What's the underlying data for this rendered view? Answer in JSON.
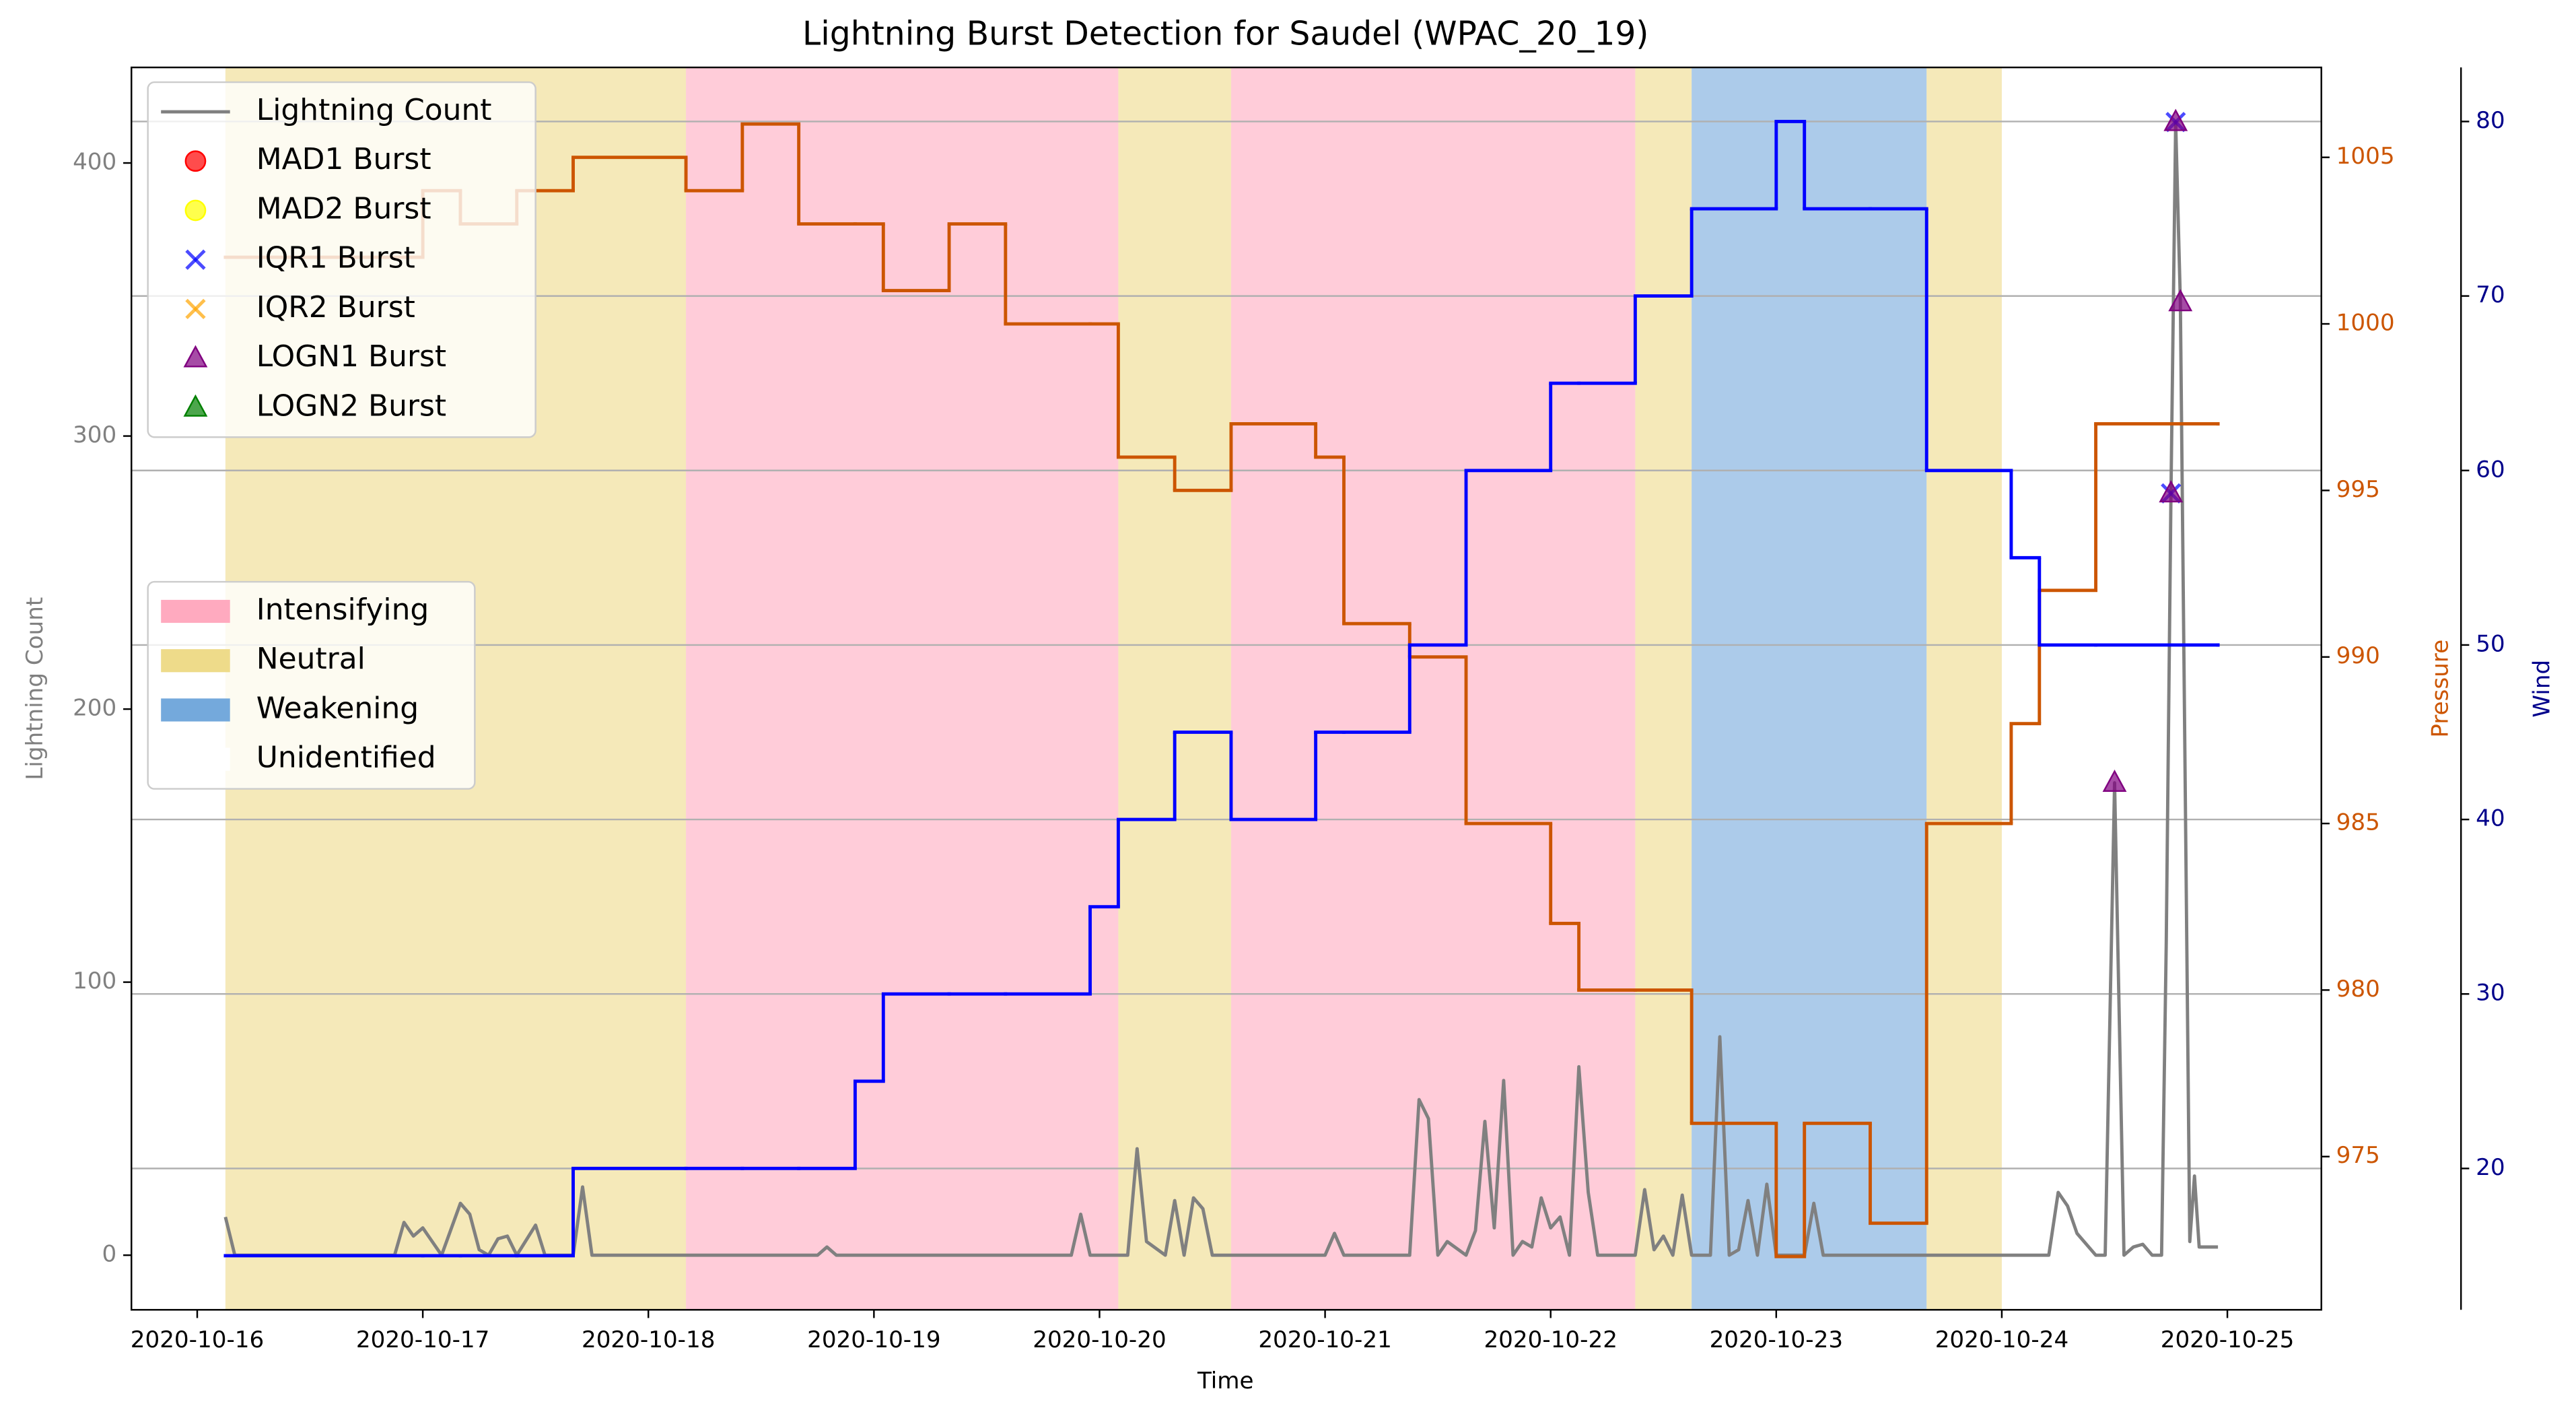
{
  "chart_data": {
    "type": "line",
    "title": "Lightning Burst Detection for Saudel (WPAC_20_19)",
    "xlabel": "Time",
    "ylabel": "Lightning Count",
    "y2label": "Pressure",
    "y3label": "Wind",
    "xlim": [
      "2020-10-15 17:00",
      "2020-10-25 10:00"
    ],
    "xticks": [
      "2020-10-16",
      "2020-10-17",
      "2020-10-18",
      "2020-10-19",
      "2020-10-20",
      "2020-10-21",
      "2020-10-22",
      "2020-10-23",
      "2020-10-24",
      "2020-10-25"
    ],
    "ylim": [
      -20,
      435
    ],
    "yticks": [
      0,
      100,
      200,
      300,
      400
    ],
    "y2lim": [
      970.4,
      1007.7
    ],
    "y2ticks": [
      975,
      980,
      985,
      990,
      995,
      1000,
      1005
    ],
    "y3lim": [
      11.9,
      83.1
    ],
    "y3ticks": [
      20,
      30,
      40,
      50,
      60,
      70,
      80
    ],
    "grid": "y3",
    "legend": "upper left",
    "phase_legend": "center left",
    "phases": [
      {
        "name": "Intensifying",
        "color": "#ffaabf"
      },
      {
        "name": "Neutral",
        "color": "#eedb8a"
      },
      {
        "name": "Weakening",
        "color": "#74a9dc"
      },
      {
        "name": "Unidentified",
        "color": "#ffffff"
      }
    ],
    "phase_spans": [
      {
        "phase": "Neutral",
        "start": "2020-10-16 03:00",
        "end": "2020-10-18 04:00"
      },
      {
        "phase": "Intensifying",
        "start": "2020-10-18 04:00",
        "end": "2020-10-20 02:00"
      },
      {
        "phase": "Neutral",
        "start": "2020-10-20 02:00",
        "end": "2020-10-20 14:00"
      },
      {
        "phase": "Intensifying",
        "start": "2020-10-20 14:00",
        "end": "2020-10-22 09:00"
      },
      {
        "phase": "Neutral",
        "start": "2020-10-22 09:00",
        "end": "2020-10-22 15:00"
      },
      {
        "phase": "Weakening",
        "start": "2020-10-22 15:00",
        "end": "2020-10-23 16:00"
      },
      {
        "phase": "Neutral",
        "start": "2020-10-23 16:00",
        "end": "2020-10-24 00:00"
      }
    ],
    "series": [
      {
        "name": "Lightning Count",
        "color": "#808080",
        "x": [
          "2020-10-16 03:00",
          "2020-10-16 04:00",
          "2020-10-16 21:00",
          "2020-10-16 22:00",
          "2020-10-16 23:00",
          "2020-10-17 00:00",
          "2020-10-17 02:00",
          "2020-10-17 04:00",
          "2020-10-17 05:00",
          "2020-10-17 06:00",
          "2020-10-17 07:00",
          "2020-10-17 08:00",
          "2020-10-17 09:00",
          "2020-10-17 10:00",
          "2020-10-17 12:00",
          "2020-10-17 13:00",
          "2020-10-17 16:00",
          "2020-10-17 17:00",
          "2020-10-17 18:00",
          "2020-10-18 18:00",
          "2020-10-18 19:00",
          "2020-10-18 20:00",
          "2020-10-19 21:00",
          "2020-10-19 22:00",
          "2020-10-19 23:00",
          "2020-10-20 03:00",
          "2020-10-20 04:00",
          "2020-10-20 05:00",
          "2020-10-20 07:00",
          "2020-10-20 08:00",
          "2020-10-20 09:00",
          "2020-10-20 10:00",
          "2020-10-20 11:00",
          "2020-10-20 12:00",
          "2020-10-21 00:00",
          "2020-10-21 01:00",
          "2020-10-21 02:00",
          "2020-10-21 09:00",
          "2020-10-21 10:00",
          "2020-10-21 11:00",
          "2020-10-21 12:00",
          "2020-10-21 13:00",
          "2020-10-21 15:00",
          "2020-10-21 16:00",
          "2020-10-21 17:00",
          "2020-10-21 18:00",
          "2020-10-21 19:00",
          "2020-10-21 20:00",
          "2020-10-21 21:00",
          "2020-10-21 22:00",
          "2020-10-21 23:00",
          "2020-10-22 00:00",
          "2020-10-22 01:00",
          "2020-10-22 02:00",
          "2020-10-22 03:00",
          "2020-10-22 04:00",
          "2020-10-22 05:00",
          "2020-10-22 09:00",
          "2020-10-22 10:00",
          "2020-10-22 11:00",
          "2020-10-22 12:00",
          "2020-10-22 13:00",
          "2020-10-22 14:00",
          "2020-10-22 15:00",
          "2020-10-22 17:00",
          "2020-10-22 18:00",
          "2020-10-22 19:00",
          "2020-10-22 20:00",
          "2020-10-22 21:00",
          "2020-10-22 22:00",
          "2020-10-22 23:00",
          "2020-10-23 00:00",
          "2020-10-23 03:00",
          "2020-10-23 04:00",
          "2020-10-23 05:00",
          "2020-10-24 05:00",
          "2020-10-24 06:00",
          "2020-10-24 07:00",
          "2020-10-24 08:00",
          "2020-10-24 10:00",
          "2020-10-24 11:00",
          "2020-10-24 12:00",
          "2020-10-24 13:00",
          "2020-10-24 14:00",
          "2020-10-24 15:00",
          "2020-10-24 16:00",
          "2020-10-24 17:00",
          "2020-10-24 17:30",
          "2020-10-24 18:00",
          "2020-10-24 18:30",
          "2020-10-24 19:00",
          "2020-10-24 20:00",
          "2020-10-24 20:30",
          "2020-10-24 21:00",
          "2020-10-24 23:00"
        ],
        "values": [
          14,
          0,
          0,
          12,
          7,
          10,
          0,
          19,
          15,
          2,
          0,
          6,
          7,
          0,
          11,
          0,
          0,
          25,
          0,
          0,
          3,
          0,
          0,
          15,
          0,
          0,
          39,
          5,
          0,
          20,
          0,
          21,
          17,
          0,
          0,
          8,
          0,
          0,
          57,
          50,
          0,
          5,
          0,
          9,
          49,
          10,
          64,
          0,
          5,
          3,
          21,
          10,
          14,
          0,
          69,
          23,
          0,
          0,
          24,
          2,
          7,
          0,
          22,
          0,
          0,
          80,
          0,
          2,
          20,
          0,
          26,
          0,
          0,
          19,
          0,
          0,
          23,
          18,
          8,
          0,
          0,
          173,
          0,
          3,
          4,
          0,
          0,
          115,
          279,
          415,
          349,
          5,
          29,
          3,
          3
        ]
      },
      {
        "axis": "y2",
        "color": "#cc5500",
        "step": true,
        "x": [
          "2020-10-16 03:00",
          "2020-10-17 00:00",
          "2020-10-17 04:00",
          "2020-10-17 10:00",
          "2020-10-17 16:00",
          "2020-10-18 04:00",
          "2020-10-18 10:00",
          "2020-10-18 16:00",
          "2020-10-18 22:00",
          "2020-10-19 01:00",
          "2020-10-19 08:00",
          "2020-10-19 14:00",
          "2020-10-19 23:00",
          "2020-10-20 02:00",
          "2020-10-20 08:00",
          "2020-10-20 14:00",
          "2020-10-20 23:00",
          "2020-10-21 02:00",
          "2020-10-21 09:00",
          "2020-10-21 15:00",
          "2020-10-22 00:00",
          "2020-10-22 03:00",
          "2020-10-22 09:00",
          "2020-10-22 15:00",
          "2020-10-23 00:00",
          "2020-10-23 03:00",
          "2020-10-23 10:00",
          "2020-10-23 16:00",
          "2020-10-24 01:00",
          "2020-10-24 04:00",
          "2020-10-24 10:00",
          "2020-10-24 23:00"
        ],
        "values": [
          1002,
          1004,
          1003,
          1004,
          1005,
          1004,
          1006,
          1003,
          1003,
          1001,
          1003,
          1000,
          1000,
          996,
          995,
          997,
          996,
          991,
          990,
          985,
          982,
          980,
          980,
          976,
          972,
          976,
          973,
          985,
          988,
          992,
          997,
          997
        ]
      },
      {
        "axis": "y3",
        "color": "#0000ff",
        "step": true,
        "x": [
          "2020-10-16 03:00",
          "2020-10-17 00:00",
          "2020-10-17 04:00",
          "2020-10-17 10:00",
          "2020-10-17 16:00",
          "2020-10-18 04:00",
          "2020-10-18 10:00",
          "2020-10-18 16:00",
          "2020-10-18 22:00",
          "2020-10-19 01:00",
          "2020-10-19 08:00",
          "2020-10-19 14:00",
          "2020-10-19 23:00",
          "2020-10-20 02:00",
          "2020-10-20 08:00",
          "2020-10-20 14:00",
          "2020-10-20 23:00",
          "2020-10-21 02:00",
          "2020-10-21 09:00",
          "2020-10-21 15:00",
          "2020-10-22 00:00",
          "2020-10-22 03:00",
          "2020-10-22 09:00",
          "2020-10-22 15:00",
          "2020-10-23 00:00",
          "2020-10-23 03:00",
          "2020-10-23 10:00",
          "2020-10-23 16:00",
          "2020-10-24 01:00",
          "2020-10-24 04:00",
          "2020-10-24 10:00",
          "2020-10-24 23:00"
        ],
        "values": [
          15,
          15,
          15,
          15,
          20,
          20,
          20,
          20,
          25,
          30,
          30,
          30,
          35,
          40,
          45,
          40,
          45,
          45,
          50,
          60,
          65,
          65,
          70,
          75,
          80,
          75,
          75,
          60,
          55,
          50,
          50,
          50
        ]
      },
      {
        "name": "MAD1 Burst",
        "color": "#ff0000",
        "marker": "o",
        "x": [],
        "values": []
      },
      {
        "name": "MAD2 Burst",
        "color": "#ffff00",
        "marker": "o",
        "x": [],
        "values": []
      },
      {
        "name": "IQR1 Burst",
        "color": "#0000ff",
        "marker": "x",
        "x": [
          "2020-10-24 18:00",
          "2020-10-24 18:30"
        ],
        "values": [
          279,
          415
        ]
      },
      {
        "name": "IQR2 Burst",
        "color": "#ffa500",
        "marker": "x",
        "x": [],
        "values": []
      },
      {
        "name": "LOGN1 Burst",
        "color": "#800080",
        "marker": "^",
        "x": [
          "2020-10-24 12:00",
          "2020-10-24 18:00",
          "2020-10-24 18:30",
          "2020-10-24 19:00"
        ],
        "values": [
          173,
          279,
          415,
          349
        ]
      },
      {
        "name": "LOGN2 Burst",
        "color": "#008000",
        "marker": "^",
        "x": [],
        "values": []
      }
    ]
  }
}
